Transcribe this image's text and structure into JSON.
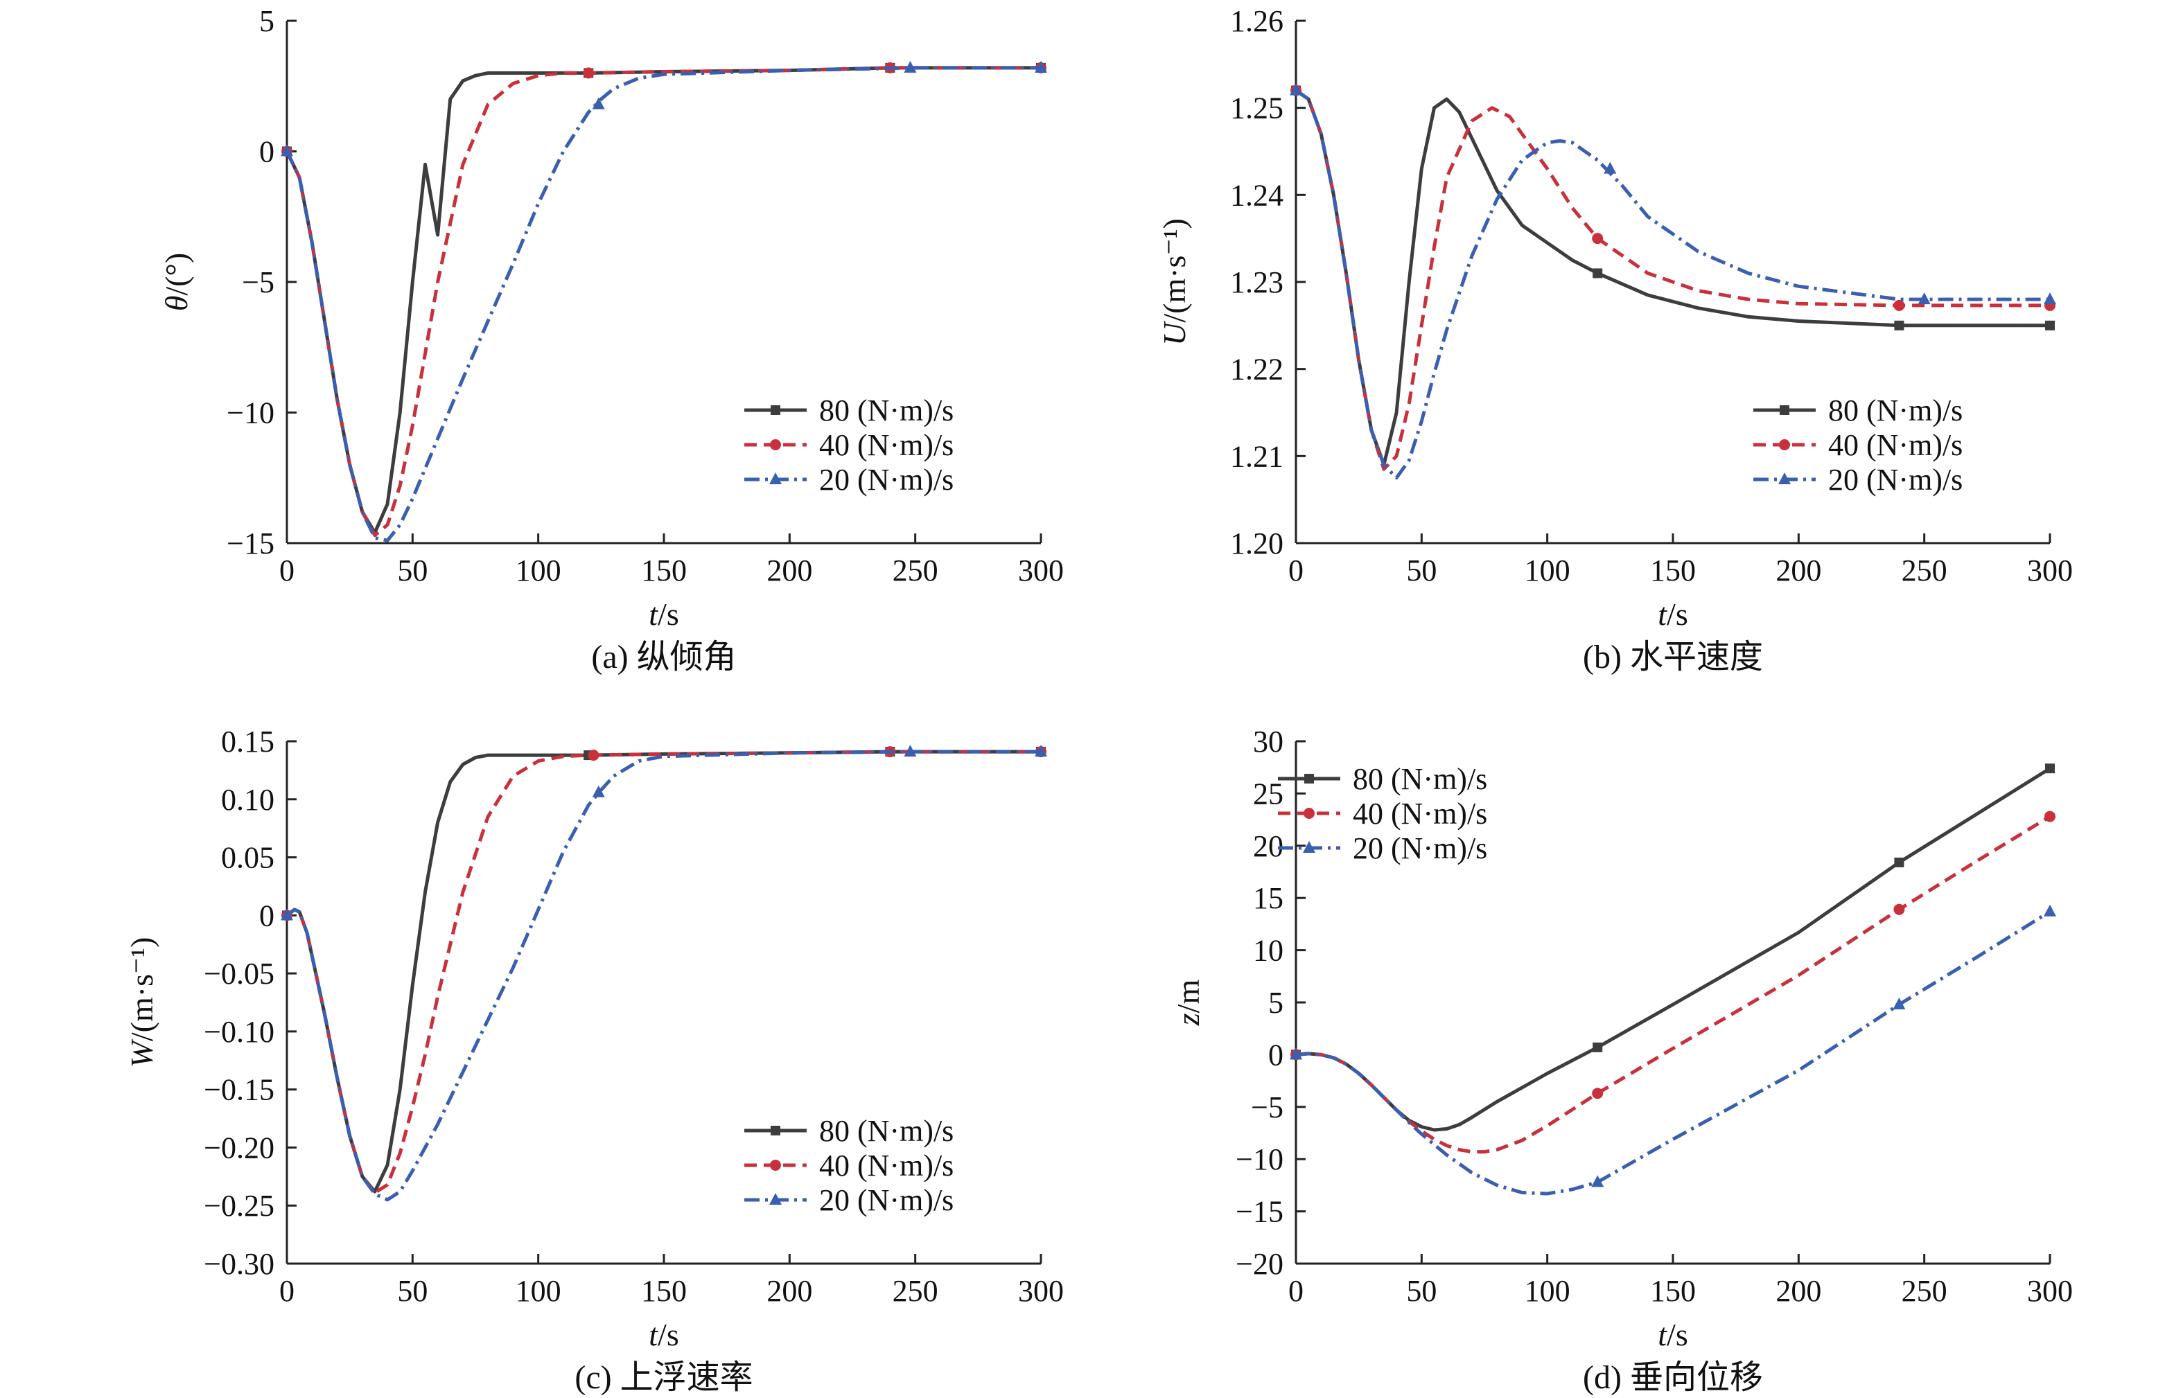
{
  "chart_data": [
    {
      "type": "line",
      "caption": "(a) 纵倾角",
      "xlabel_var": "t",
      "xlabel_unit": "/s",
      "ylabel_var": "θ",
      "ylabel_unit": "/(°)",
      "xlim": [
        0,
        300
      ],
      "ylim": [
        -15,
        5
      ],
      "xticks": [
        0,
        50,
        100,
        150,
        200,
        250,
        300
      ],
      "yticks": [
        -15,
        -10,
        -5,
        0,
        5
      ],
      "ytick_labels": [
        "−15",
        "−10",
        "−5",
        "0",
        "5"
      ],
      "legend_position": "bottom-right",
      "series": [
        {
          "name": "80 (N·m)/s",
          "color": "#3d3d3d",
          "dash": "solid",
          "marker": "square",
          "x": [
            0,
            5,
            10,
            15,
            20,
            25,
            30,
            35,
            40,
            45,
            50,
            55,
            60,
            65,
            70,
            75,
            80,
            85,
            90,
            100,
            120,
            150,
            200,
            240,
            300
          ],
          "y": [
            0,
            -1.0,
            -3.5,
            -6.5,
            -9.5,
            -12.0,
            -13.8,
            -14.6,
            -13.5,
            -10.0,
            -5.0,
            -0.5,
            -3.2,
            2.0,
            2.7,
            2.9,
            3.0,
            3.0,
            3.0,
            3.0,
            3.0,
            3.05,
            3.1,
            3.2,
            3.2
          ],
          "marker_x": [
            0,
            120,
            240,
            300
          ],
          "marker_y": [
            0,
            3.0,
            3.2,
            3.2
          ]
        },
        {
          "name": "40 (N·m)/s",
          "color": "#c8313b",
          "dash": "dashed",
          "marker": "circle",
          "x": [
            0,
            5,
            10,
            15,
            20,
            25,
            30,
            35,
            40,
            45,
            50,
            60,
            70,
            80,
            90,
            100,
            110,
            120,
            150,
            200,
            240,
            300
          ],
          "y": [
            0,
            -1.0,
            -3.5,
            -6.5,
            -9.5,
            -12.0,
            -13.8,
            -14.7,
            -14.3,
            -12.8,
            -10.5,
            -5.0,
            -0.5,
            1.8,
            2.6,
            2.9,
            3.0,
            3.0,
            3.05,
            3.1,
            3.2,
            3.2
          ],
          "marker_x": [
            0,
            120,
            240,
            300
          ],
          "marker_y": [
            0,
            3.0,
            3.2,
            3.2
          ]
        },
        {
          "name": "20 (N·m)/s",
          "color": "#3a5fb0",
          "dash": "dashdot",
          "marker": "triangle",
          "x": [
            0,
            5,
            10,
            15,
            20,
            25,
            30,
            35,
            40,
            45,
            50,
            60,
            70,
            80,
            90,
            100,
            110,
            120,
            125,
            130,
            140,
            150,
            200,
            250,
            300
          ],
          "y": [
            0,
            -1.0,
            -3.5,
            -6.5,
            -9.5,
            -12.0,
            -13.8,
            -14.8,
            -14.9,
            -14.3,
            -13.3,
            -11.0,
            -8.7,
            -6.5,
            -4.3,
            -2.0,
            0.0,
            1.5,
            2.0,
            2.4,
            2.8,
            2.95,
            3.1,
            3.2,
            3.2
          ],
          "marker_x": [
            0,
            124,
            248,
            300
          ],
          "marker_y": [
            0,
            1.8,
            3.2,
            3.2
          ]
        }
      ]
    },
    {
      "type": "line",
      "caption": "(b) 水平速度",
      "xlabel_var": "t",
      "xlabel_unit": "/s",
      "ylabel_var": "U",
      "ylabel_unit": "/(m·s⁻¹)",
      "xlim": [
        0,
        300
      ],
      "ylim": [
        1.2,
        1.26
      ],
      "xticks": [
        0,
        50,
        100,
        150,
        200,
        250,
        300
      ],
      "yticks": [
        1.2,
        1.21,
        1.22,
        1.23,
        1.24,
        1.25,
        1.26
      ],
      "ytick_labels": [
        "1.20",
        "1.21",
        "1.22",
        "1.23",
        "1.24",
        "1.25",
        "1.26"
      ],
      "legend_position": "bottom-right",
      "series": [
        {
          "name": "80 (N·m)/s",
          "color": "#3d3d3d",
          "dash": "solid",
          "marker": "square",
          "x": [
            0,
            5,
            10,
            15,
            20,
            25,
            30,
            35,
            40,
            45,
            50,
            55,
            60,
            65,
            70,
            80,
            90,
            100,
            110,
            120,
            140,
            160,
            180,
            200,
            240,
            270,
            300
          ],
          "y": [
            1.252,
            1.251,
            1.247,
            1.24,
            1.231,
            1.221,
            1.213,
            1.209,
            1.215,
            1.23,
            1.243,
            1.25,
            1.251,
            1.2495,
            1.2465,
            1.2405,
            1.2365,
            1.2345,
            1.2325,
            1.231,
            1.2285,
            1.227,
            1.226,
            1.2255,
            1.225,
            1.225,
            1.225
          ],
          "marker_x": [
            0,
            120,
            240,
            300
          ],
          "marker_y": [
            1.252,
            1.231,
            1.225,
            1.225
          ]
        },
        {
          "name": "40 (N·m)/s",
          "color": "#c8313b",
          "dash": "dashed",
          "marker": "circle",
          "x": [
            0,
            5,
            10,
            15,
            20,
            25,
            30,
            35,
            40,
            45,
            50,
            55,
            60,
            70,
            78,
            85,
            90,
            100,
            110,
            120,
            140,
            160,
            180,
            200,
            240,
            270,
            300
          ],
          "y": [
            1.252,
            1.251,
            1.247,
            1.24,
            1.231,
            1.221,
            1.213,
            1.2085,
            1.21,
            1.216,
            1.225,
            1.234,
            1.242,
            1.2485,
            1.25,
            1.249,
            1.247,
            1.243,
            1.2385,
            1.235,
            1.231,
            1.229,
            1.228,
            1.2275,
            1.2273,
            1.2273,
            1.2273
          ],
          "marker_x": [
            0,
            120,
            240,
            300
          ],
          "marker_y": [
            1.252,
            1.235,
            1.2273,
            1.2273
          ]
        },
        {
          "name": "20 (N·m)/s",
          "color": "#3a5fb0",
          "dash": "dashdot",
          "marker": "triangle",
          "x": [
            0,
            5,
            10,
            15,
            20,
            25,
            30,
            35,
            40,
            45,
            50,
            55,
            60,
            70,
            80,
            90,
            100,
            105,
            110,
            120,
            130,
            140,
            160,
            180,
            200,
            240,
            270,
            300
          ],
          "y": [
            1.252,
            1.251,
            1.247,
            1.24,
            1.231,
            1.221,
            1.213,
            1.209,
            1.2075,
            1.2095,
            1.214,
            1.2195,
            1.2245,
            1.233,
            1.2395,
            1.244,
            1.246,
            1.2462,
            1.246,
            1.244,
            1.241,
            1.2375,
            1.2335,
            1.231,
            1.2295,
            1.228,
            1.228,
            1.228
          ],
          "marker_x": [
            0,
            125,
            250,
            300
          ],
          "marker_y": [
            1.252,
            1.243,
            1.228,
            1.228
          ]
        }
      ]
    },
    {
      "type": "line",
      "caption": "(c) 上浮速率",
      "xlabel_var": "t",
      "xlabel_unit": "/s",
      "ylabel_var": "W",
      "ylabel_unit": "/(m·s⁻¹)",
      "xlim": [
        0,
        300
      ],
      "ylim": [
        -0.3,
        0.15
      ],
      "xticks": [
        0,
        50,
        100,
        150,
        200,
        250,
        300
      ],
      "yticks": [
        -0.3,
        -0.25,
        -0.2,
        -0.15,
        -0.1,
        -0.05,
        0,
        0.05,
        0.1,
        0.15
      ],
      "ytick_labels": [
        "−0.30",
        "−0.25",
        "−0.20",
        "−0.15",
        "−0.10",
        "−0.05",
        "0",
        "0.05",
        "0.10",
        "0.15"
      ],
      "legend_position": "bottom-right",
      "series": [
        {
          "name": "80 (N·m)/s",
          "color": "#3d3d3d",
          "dash": "solid",
          "marker": "square",
          "x": [
            0,
            3,
            5,
            8,
            10,
            15,
            20,
            25,
            30,
            35,
            40,
            45,
            50,
            55,
            60,
            65,
            70,
            75,
            80,
            90,
            100,
            120,
            150,
            200,
            240,
            300
          ],
          "y": [
            0,
            0.005,
            0.003,
            -0.015,
            -0.035,
            -0.085,
            -0.14,
            -0.19,
            -0.225,
            -0.238,
            -0.215,
            -0.15,
            -0.06,
            0.02,
            0.08,
            0.115,
            0.13,
            0.136,
            0.138,
            0.138,
            0.138,
            0.138,
            0.139,
            0.14,
            0.141,
            0.141
          ],
          "marker_x": [
            0,
            120,
            240,
            300
          ],
          "marker_y": [
            0,
            0.138,
            0.141,
            0.141
          ]
        },
        {
          "name": "40 (N·m)/s",
          "color": "#c8313b",
          "dash": "dashed",
          "marker": "circle",
          "x": [
            0,
            3,
            5,
            8,
            10,
            15,
            20,
            25,
            30,
            35,
            40,
            45,
            50,
            55,
            60,
            70,
            80,
            90,
            100,
            110,
            120,
            150,
            200,
            240,
            300
          ],
          "y": [
            0,
            0.005,
            0.003,
            -0.015,
            -0.035,
            -0.085,
            -0.14,
            -0.19,
            -0.225,
            -0.239,
            -0.232,
            -0.205,
            -0.165,
            -0.12,
            -0.07,
            0.02,
            0.085,
            0.12,
            0.133,
            0.137,
            0.138,
            0.139,
            0.14,
            0.141,
            0.141
          ],
          "marker_x": [
            0,
            122,
            240,
            300
          ],
          "marker_y": [
            0,
            0.138,
            0.141,
            0.141
          ]
        },
        {
          "name": "20 (N·m)/s",
          "color": "#3a5fb0",
          "dash": "dashdot",
          "marker": "triangle",
          "x": [
            0,
            3,
            5,
            8,
            10,
            15,
            20,
            25,
            30,
            35,
            40,
            45,
            50,
            60,
            70,
            80,
            90,
            100,
            110,
            120,
            125,
            130,
            140,
            150,
            200,
            250,
            300
          ],
          "y": [
            0,
            0.005,
            0.003,
            -0.015,
            -0.035,
            -0.085,
            -0.14,
            -0.19,
            -0.225,
            -0.24,
            -0.245,
            -0.238,
            -0.22,
            -0.18,
            -0.135,
            -0.09,
            -0.045,
            0.005,
            0.055,
            0.095,
            0.108,
            0.12,
            0.133,
            0.137,
            0.14,
            0.141,
            0.141
          ],
          "marker_x": [
            0,
            124,
            248,
            300
          ],
          "marker_y": [
            0,
            0.106,
            0.141,
            0.141
          ]
        }
      ]
    },
    {
      "type": "line",
      "caption": "(d) 垂向位移",
      "xlabel_var": "t",
      "xlabel_unit": "/s",
      "ylabel_var": "z",
      "ylabel_unit": "/m",
      "xlim": [
        0,
        300
      ],
      "ylim": [
        -20,
        30
      ],
      "xticks": [
        0,
        50,
        100,
        150,
        200,
        250,
        300
      ],
      "yticks": [
        -20,
        -15,
        -10,
        -5,
        0,
        5,
        10,
        15,
        20,
        25,
        30
      ],
      "ytick_labels": [
        "−20",
        "−15",
        "−10",
        "−5",
        "0",
        "5",
        "10",
        "15",
        "20",
        "25",
        "30"
      ],
      "legend_position": "top-left",
      "series": [
        {
          "name": "80 (N·m)/s",
          "color": "#3d3d3d",
          "dash": "solid",
          "marker": "square",
          "x": [
            0,
            5,
            10,
            15,
            20,
            25,
            30,
            35,
            40,
            45,
            50,
            55,
            60,
            65,
            70,
            80,
            100,
            120,
            150,
            200,
            240,
            270,
            300
          ],
          "y": [
            0,
            0.1,
            0.0,
            -0.3,
            -0.9,
            -1.8,
            -2.9,
            -4.1,
            -5.3,
            -6.3,
            -6.9,
            -7.2,
            -7.1,
            -6.7,
            -6.0,
            -4.5,
            -1.8,
            0.7,
            4.8,
            11.7,
            18.4,
            22.9,
            27.4
          ],
          "marker_x": [
            0,
            120,
            240,
            300
          ],
          "marker_y": [
            0,
            0.7,
            18.4,
            27.4
          ]
        },
        {
          "name": "40 (N·m)/s",
          "color": "#c8313b",
          "dash": "dashed",
          "marker": "circle",
          "x": [
            0,
            5,
            10,
            15,
            20,
            25,
            30,
            35,
            40,
            45,
            50,
            55,
            60,
            65,
            70,
            75,
            80,
            90,
            100,
            120,
            150,
            200,
            240,
            270,
            300
          ],
          "y": [
            0,
            0.1,
            0.0,
            -0.3,
            -0.9,
            -1.8,
            -2.9,
            -4.1,
            -5.3,
            -6.4,
            -7.3,
            -8.1,
            -8.7,
            -9.1,
            -9.3,
            -9.3,
            -9.1,
            -8.2,
            -6.8,
            -3.7,
            0.6,
            7.6,
            13.9,
            18.4,
            22.8
          ],
          "marker_x": [
            0,
            120,
            240,
            300
          ],
          "marker_y": [
            0,
            -3.7,
            13.9,
            22.8
          ]
        },
        {
          "name": "20 (N·m)/s",
          "color": "#3a5fb0",
          "dash": "dashdot",
          "marker": "triangle",
          "x": [
            0,
            5,
            10,
            15,
            20,
            25,
            30,
            35,
            40,
            45,
            50,
            55,
            60,
            70,
            80,
            90,
            100,
            110,
            120,
            150,
            200,
            240,
            270,
            300
          ],
          "y": [
            0,
            0.1,
            0.0,
            -0.3,
            -0.9,
            -1.8,
            -2.9,
            -4.1,
            -5.3,
            -6.5,
            -7.6,
            -8.6,
            -9.6,
            -11.3,
            -12.5,
            -13.2,
            -13.3,
            -12.9,
            -12.2,
            -8.1,
            -1.5,
            4.8,
            9.2,
            13.7
          ],
          "marker_x": [
            0,
            120,
            240,
            300
          ],
          "marker_y": [
            0,
            -12.2,
            4.8,
            13.7
          ]
        }
      ]
    }
  ]
}
